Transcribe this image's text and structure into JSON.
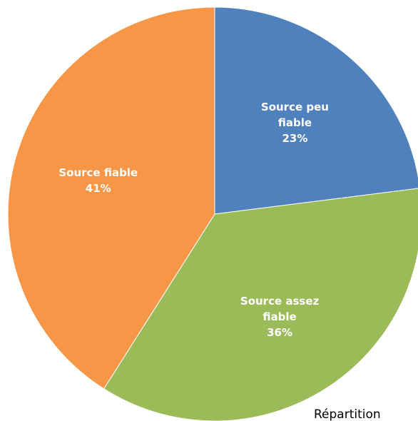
{
  "chart_data": {
    "type": "pie",
    "title": "Répartition",
    "categories": [
      "Source peu fiable",
      "Source assez fiable",
      "Source fiable"
    ],
    "values": [
      23,
      36,
      41
    ],
    "value_labels": [
      "23%",
      "36%",
      "41%"
    ],
    "colors": [
      "#4f81bd",
      "#9bbb59",
      "#f79646"
    ]
  }
}
